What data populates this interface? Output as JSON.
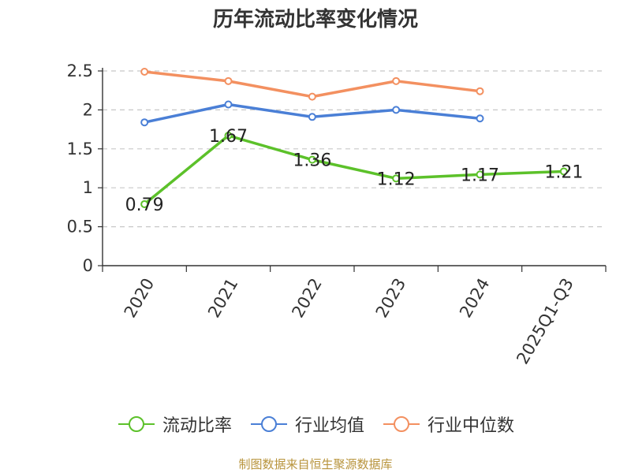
{
  "chart_data": {
    "type": "line",
    "title": "历年流动比率变化情况",
    "categories": [
      "2020",
      "2021",
      "2022",
      "2023",
      "2024",
      "2025Q1-Q3"
    ],
    "ylim": [
      0,
      2.5
    ],
    "yticks": [
      0,
      0.5,
      1,
      1.5,
      2,
      2.5
    ],
    "ytick_labels": [
      "0",
      "0.5",
      "1",
      "1.5",
      "2",
      "2.5"
    ],
    "grid": true,
    "legend_position": "bottom",
    "series": [
      {
        "name": "流动比率",
        "color": "#5cc12a",
        "values": [
          0.79,
          1.67,
          1.36,
          1.12,
          1.17,
          1.21
        ],
        "labels": [
          "0.79",
          "1.67",
          "1.36",
          "1.12",
          "1.17",
          "1.21"
        ]
      },
      {
        "name": "行业均值",
        "color": "#4a7fd6",
        "values": [
          1.84,
          2.07,
          1.91,
          2.0,
          1.89,
          null
        ]
      },
      {
        "name": "行业中位数",
        "color": "#f39060",
        "values": [
          2.49,
          2.37,
          2.17,
          2.37,
          2.24,
          null
        ]
      }
    ]
  },
  "source_note": "制图数据来自恒生聚源数据库"
}
